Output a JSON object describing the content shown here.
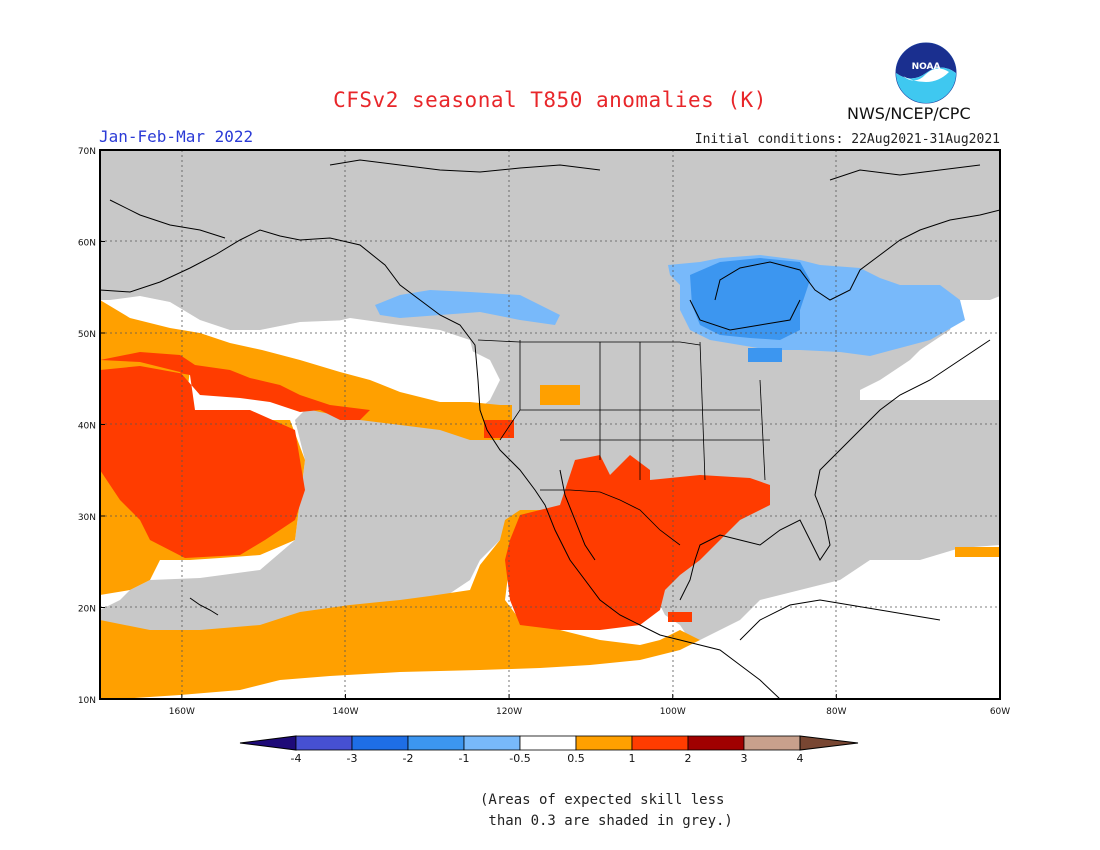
{
  "header": {
    "title": "CFSv2 seasonal T850 anomalies (K)",
    "season": "Jan-Feb-Mar 2022",
    "initial_conditions": "Initial conditions: 22Aug2021-31Aug2021",
    "agency": "NWS/NCEP/CPC",
    "logo_text": "NOAA"
  },
  "map": {
    "lat_labels": [
      "70N",
      "60N",
      "50N",
      "40N",
      "30N",
      "20N",
      "10N"
    ],
    "lon_labels": [
      "160W",
      "140W",
      "120W",
      "100W",
      "80W",
      "60W"
    ],
    "extent": {
      "lon_min": -170,
      "lon_max": -60,
      "lat_min": 10,
      "lat_max": 70
    },
    "skill_mask_color": "#c8c8c8",
    "regions": [
      {
        "name": "pacific-warm-band",
        "anomaly": "0.5 to 1",
        "color": "#ffa000"
      },
      {
        "name": "north-pacific-warm-core",
        "anomaly": "1 to 2",
        "color": "#ff3c00"
      },
      {
        "name": "mexico-southern-us-warm",
        "anomaly": "1 to 2",
        "color": "#ff3c00"
      },
      {
        "name": "canada-cold-hudson",
        "anomaly": "-1 to -2",
        "color": "#3c96f0"
      },
      {
        "name": "canada-cold-outer",
        "anomaly": "-0.5 to -1",
        "color": "#78b9fa"
      }
    ]
  },
  "legend": {
    "tick_labels": [
      "-4",
      "-3",
      "-2",
      "-1",
      "-0.5",
      "0.5",
      "1",
      "2",
      "3",
      "4"
    ],
    "colors": [
      "#1e0a78",
      "#4650d2",
      "#1e6ee6",
      "#3c96f0",
      "#78b9fa",
      "#ffffff",
      "#ffa000",
      "#ff3c00",
      "#a00000",
      "#c8a08c",
      "#784632"
    ]
  },
  "note": {
    "line1": "(Areas of expected skill less",
    "line2": " than 0.3 are shaded in grey.)"
  }
}
